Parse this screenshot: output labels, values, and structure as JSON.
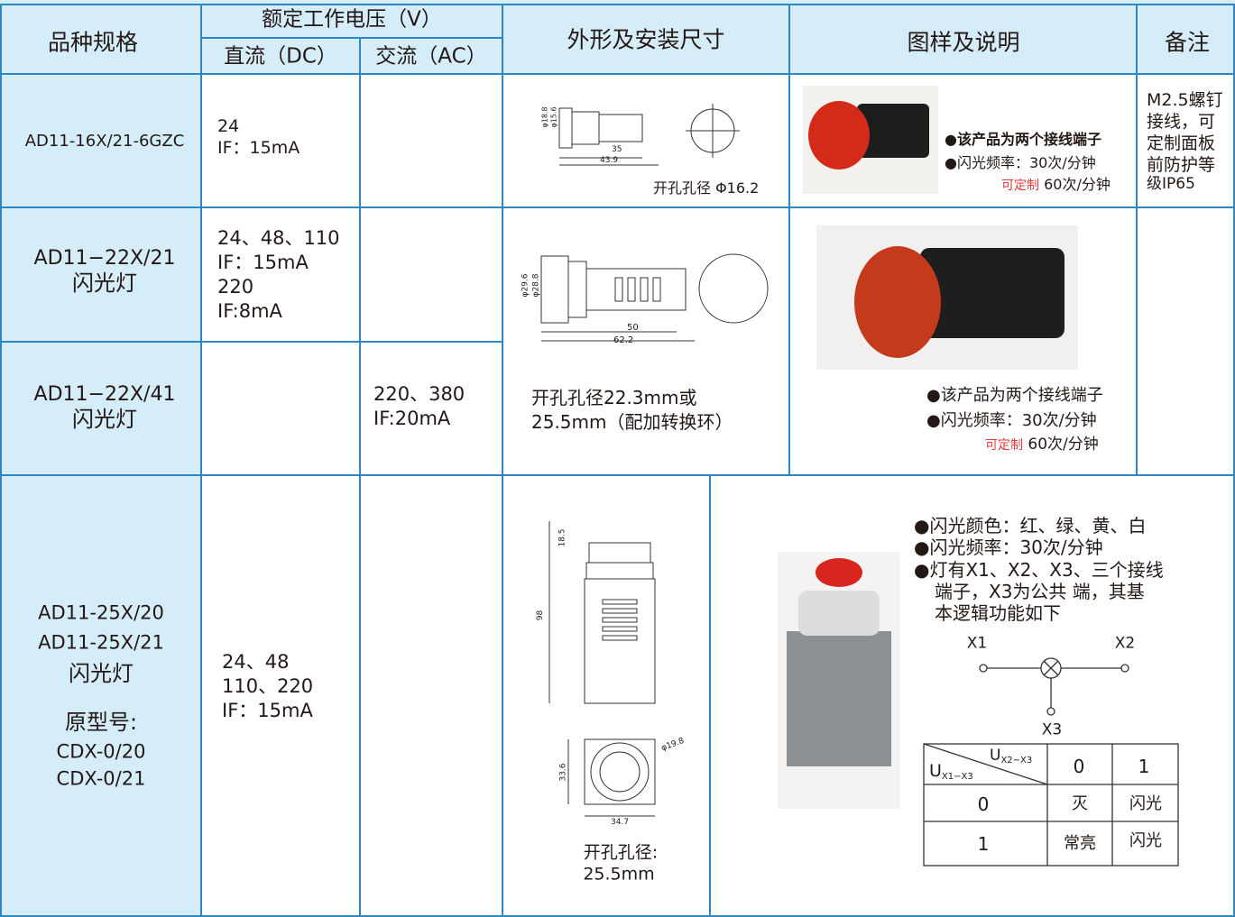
{
  "header": {
    "model": "品种规格",
    "voltage": "额定工作电压（V）",
    "dc": "直流（DC）",
    "ac": "交流（AC）",
    "dimensions": "外形及安装尺寸",
    "illustration": "图样及说明",
    "remarks": "备注"
  },
  "rows": [
    {
      "model": [
        "AD11-16X/21-6GZC"
      ],
      "dc": [
        "24",
        "IF：15mA"
      ],
      "dims": [
        "φ18.8",
        "φ15.6",
        "35",
        "43.9"
      ],
      "hole": [
        "开孔孔径 Φ16.2"
      ],
      "notes": [
        "●该产品为两个接线端子",
        "●闪光频率：30次/分钟"
      ],
      "custom": "可定制",
      "custom_rate": "60次/分钟",
      "remark": [
        "M2.5螺钉",
        "接线，可",
        "定制面板",
        "前防护等",
        "级IP65"
      ]
    },
    {
      "model": [
        "AD11−22X/21",
        "闪光灯"
      ],
      "dc": [
        "24、48、110",
        "IF：15mA",
        "220",
        "IF:8mA"
      ],
      "dims": [
        "φ29.6",
        "φ28.8",
        "50",
        "62.2"
      ],
      "hole": [
        "开孔孔径22.3mm或",
        "25.5mm（配加转换环）"
      ],
      "notes": [
        "●该产品为两个接线端子",
        "●闪光频率：30次/分钟"
      ],
      "custom": "可定制",
      "custom_rate": "60次/分钟"
    },
    {
      "model": [
        "AD11−22X/41",
        "闪光灯"
      ],
      "ac": [
        "220、380",
        "IF:20mA"
      ]
    },
    {
      "model": [
        "AD11-25X/20",
        "AD11-25X/21",
        "闪光灯",
        "原型号:",
        "CDX-0/20",
        "CDX-0/21"
      ],
      "dc": [
        "24、48",
        "110、220",
        "IF：15mA"
      ],
      "dims": [
        "18.5",
        "98",
        "φ19.8",
        "33.6",
        "34.7"
      ],
      "hole": [
        "开孔孔径:",
        "25.5mm"
      ],
      "notes": [
        "●闪光颜色：红、绿、黄、白",
        "●闪光频率：30次/分钟",
        "●灯有X1、X2、X3、三个接线",
        "端子，X3为公共 端，其基",
        "本逻辑功能如下"
      ],
      "terminals": [
        "X1",
        "X2",
        "X3"
      ],
      "logic": {
        "corner_row": {
          "u": "U",
          "sub": "X1−X3"
        },
        "corner_col": {
          "u": "U",
          "sub": "X2−X3"
        },
        "cols": [
          "0",
          "1"
        ],
        "rows": [
          [
            "0",
            "灭",
            "闪光"
          ],
          [
            "1",
            "常亮",
            "闪光"
          ]
        ]
      }
    }
  ]
}
